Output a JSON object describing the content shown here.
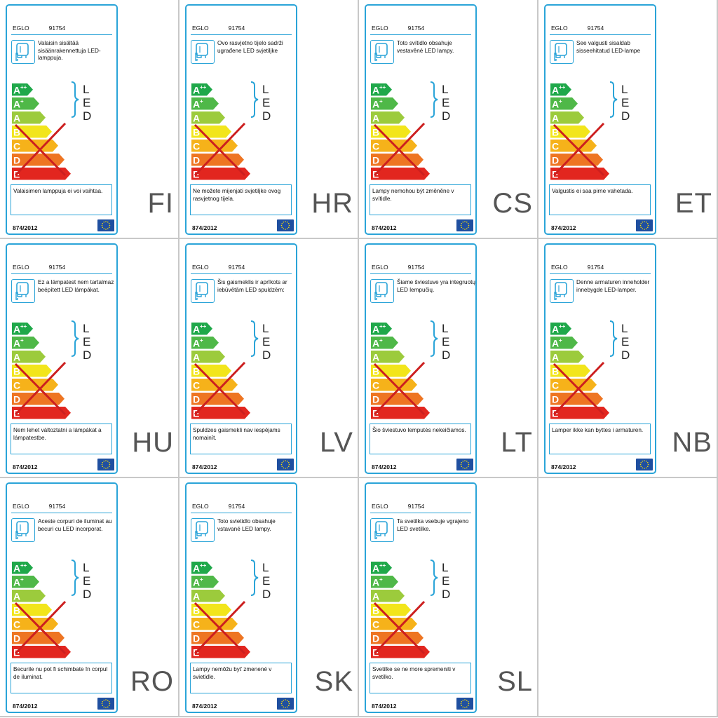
{
  "brand": "EGLO",
  "model": "91754",
  "regulation": "874/2012",
  "led_letters": [
    "L",
    "E",
    "D"
  ],
  "classes": [
    {
      "letter": "A",
      "sup": "++",
      "color": "#1fa84a"
    },
    {
      "letter": "A",
      "sup": "+",
      "color": "#4fb848"
    },
    {
      "letter": "A",
      "sup": "",
      "color": "#9ccb3c"
    },
    {
      "letter": "B",
      "sup": "",
      "color": "#f2e51b"
    },
    {
      "letter": "C",
      "sup": "",
      "color": "#f6b21a"
    },
    {
      "letter": "D",
      "sup": "",
      "color": "#ee7522"
    },
    {
      "letter": "E",
      "sup": "",
      "color": "#e2261f"
    }
  ],
  "colors": {
    "border": "#2aa4d8",
    "cross": "#cc1f1f",
    "eu_blue": "#1f4fa0",
    "eu_star": "#ffdd00"
  },
  "labels": [
    {
      "lang": "FI",
      "info": "Valaisin sisältää sisäänrakennettuja LED-lamppuja.",
      "notice": "Valaisimen lamppuja ei voi vaihtaa."
    },
    {
      "lang": "HR",
      "info": "Ovo rasvjetno tijelo sadrži ugrađene LED svjetiljke",
      "notice": "Ne možete mijenjati svjetiljke ovog rasvjetnog tijela."
    },
    {
      "lang": "CS",
      "info": "Toto svítidlo obsahuje vestavěné LED lampy.",
      "notice": "Lampy nemohou být změněne v svítidle."
    },
    {
      "lang": "ET",
      "info": "See valgusti sisaldab sisseehitatud LED-lampe",
      "notice": "Valgustis ei saa pirne vahetada."
    },
    {
      "lang": "HU",
      "info": "Ez a lámpatest nem tartalmaz beépített LED lámpákat.",
      "notice": "Nem lehet változtatni a lámpákat a lámpatestbe."
    },
    {
      "lang": "LV",
      "info": "Šis gaismeklis ir aprīkots ar iebūvētām LED spuldzēm:",
      "notice": "Spuldzes gaismekli nav iespējams nomainīt."
    },
    {
      "lang": "LT",
      "info": "Šiame šviestuve yra integruotų LED lempučių.",
      "notice": "Šio šviestuvo lemputės nekeičiamos."
    },
    {
      "lang": "NB",
      "info": "Denne armaturen inneholder innebygde LED-lamper.",
      "notice": "Lamper ikke kan byttes i armaturen."
    },
    {
      "lang": "RO",
      "info": "Aceste corpuri de iluminat au becuri cu LED incorporat.",
      "notice": "Becurile nu pot fi schimbate în corpul de iluminat."
    },
    {
      "lang": "SK",
      "info": "Toto svietidlo obsahuje vstavané LED lampy.",
      "notice": "Lampy nemôžu byť zmenené v svietidle."
    },
    {
      "lang": "SL",
      "info": "Ta svetilka vsebuje vgrajeno LED svetilke.",
      "notice": "Svetilke se ne more spremeniti v svetilko."
    }
  ]
}
